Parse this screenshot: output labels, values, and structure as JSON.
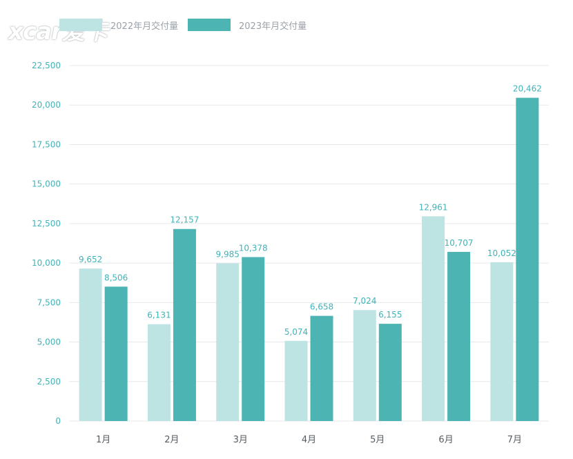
{
  "watermark": {
    "text": "xcar爱卡"
  },
  "colors": {
    "series_2022": "#bde3e3",
    "series_2023": "#4db4b4",
    "axis_text": "#3fb3b8",
    "value_text": "#3fb3b8",
    "grid": "#e6e9eb"
  },
  "legend": {
    "series_2022_label": "2022年月交付量",
    "series_2023_label": "2023年月交付量"
  },
  "chart_data": {
    "type": "bar",
    "title": "",
    "xlabel": "",
    "ylabel": "",
    "categories": [
      "1月",
      "2月",
      "3月",
      "4月",
      "5月",
      "6月",
      "7月"
    ],
    "series": [
      {
        "name": "2022年月交付量",
        "values": [
          9652,
          6131,
          9985,
          5074,
          7024,
          12961,
          10052
        ],
        "labels": [
          "9,652",
          "6,131",
          "9,985",
          "5,074",
          "7,024",
          "12,961",
          "10,052"
        ]
      },
      {
        "name": "2023年月交付量",
        "values": [
          8506,
          12157,
          10378,
          6658,
          6155,
          10707,
          20462
        ],
        "labels": [
          "8,506",
          "12,157",
          "10,378",
          "6,658",
          "6,155",
          "10,707",
          "20,462"
        ]
      }
    ],
    "ylim": [
      0,
      22500
    ],
    "yticks": [
      0,
      2500,
      5000,
      7500,
      10000,
      12500,
      15000,
      17500,
      20000,
      22500
    ],
    "ytick_labels": [
      "0",
      "2,500",
      "5,000",
      "7,500",
      "10,000",
      "12,500",
      "15,000",
      "17,500",
      "20,000",
      "22,500"
    ],
    "grid": true,
    "legend_position": "top-left"
  }
}
